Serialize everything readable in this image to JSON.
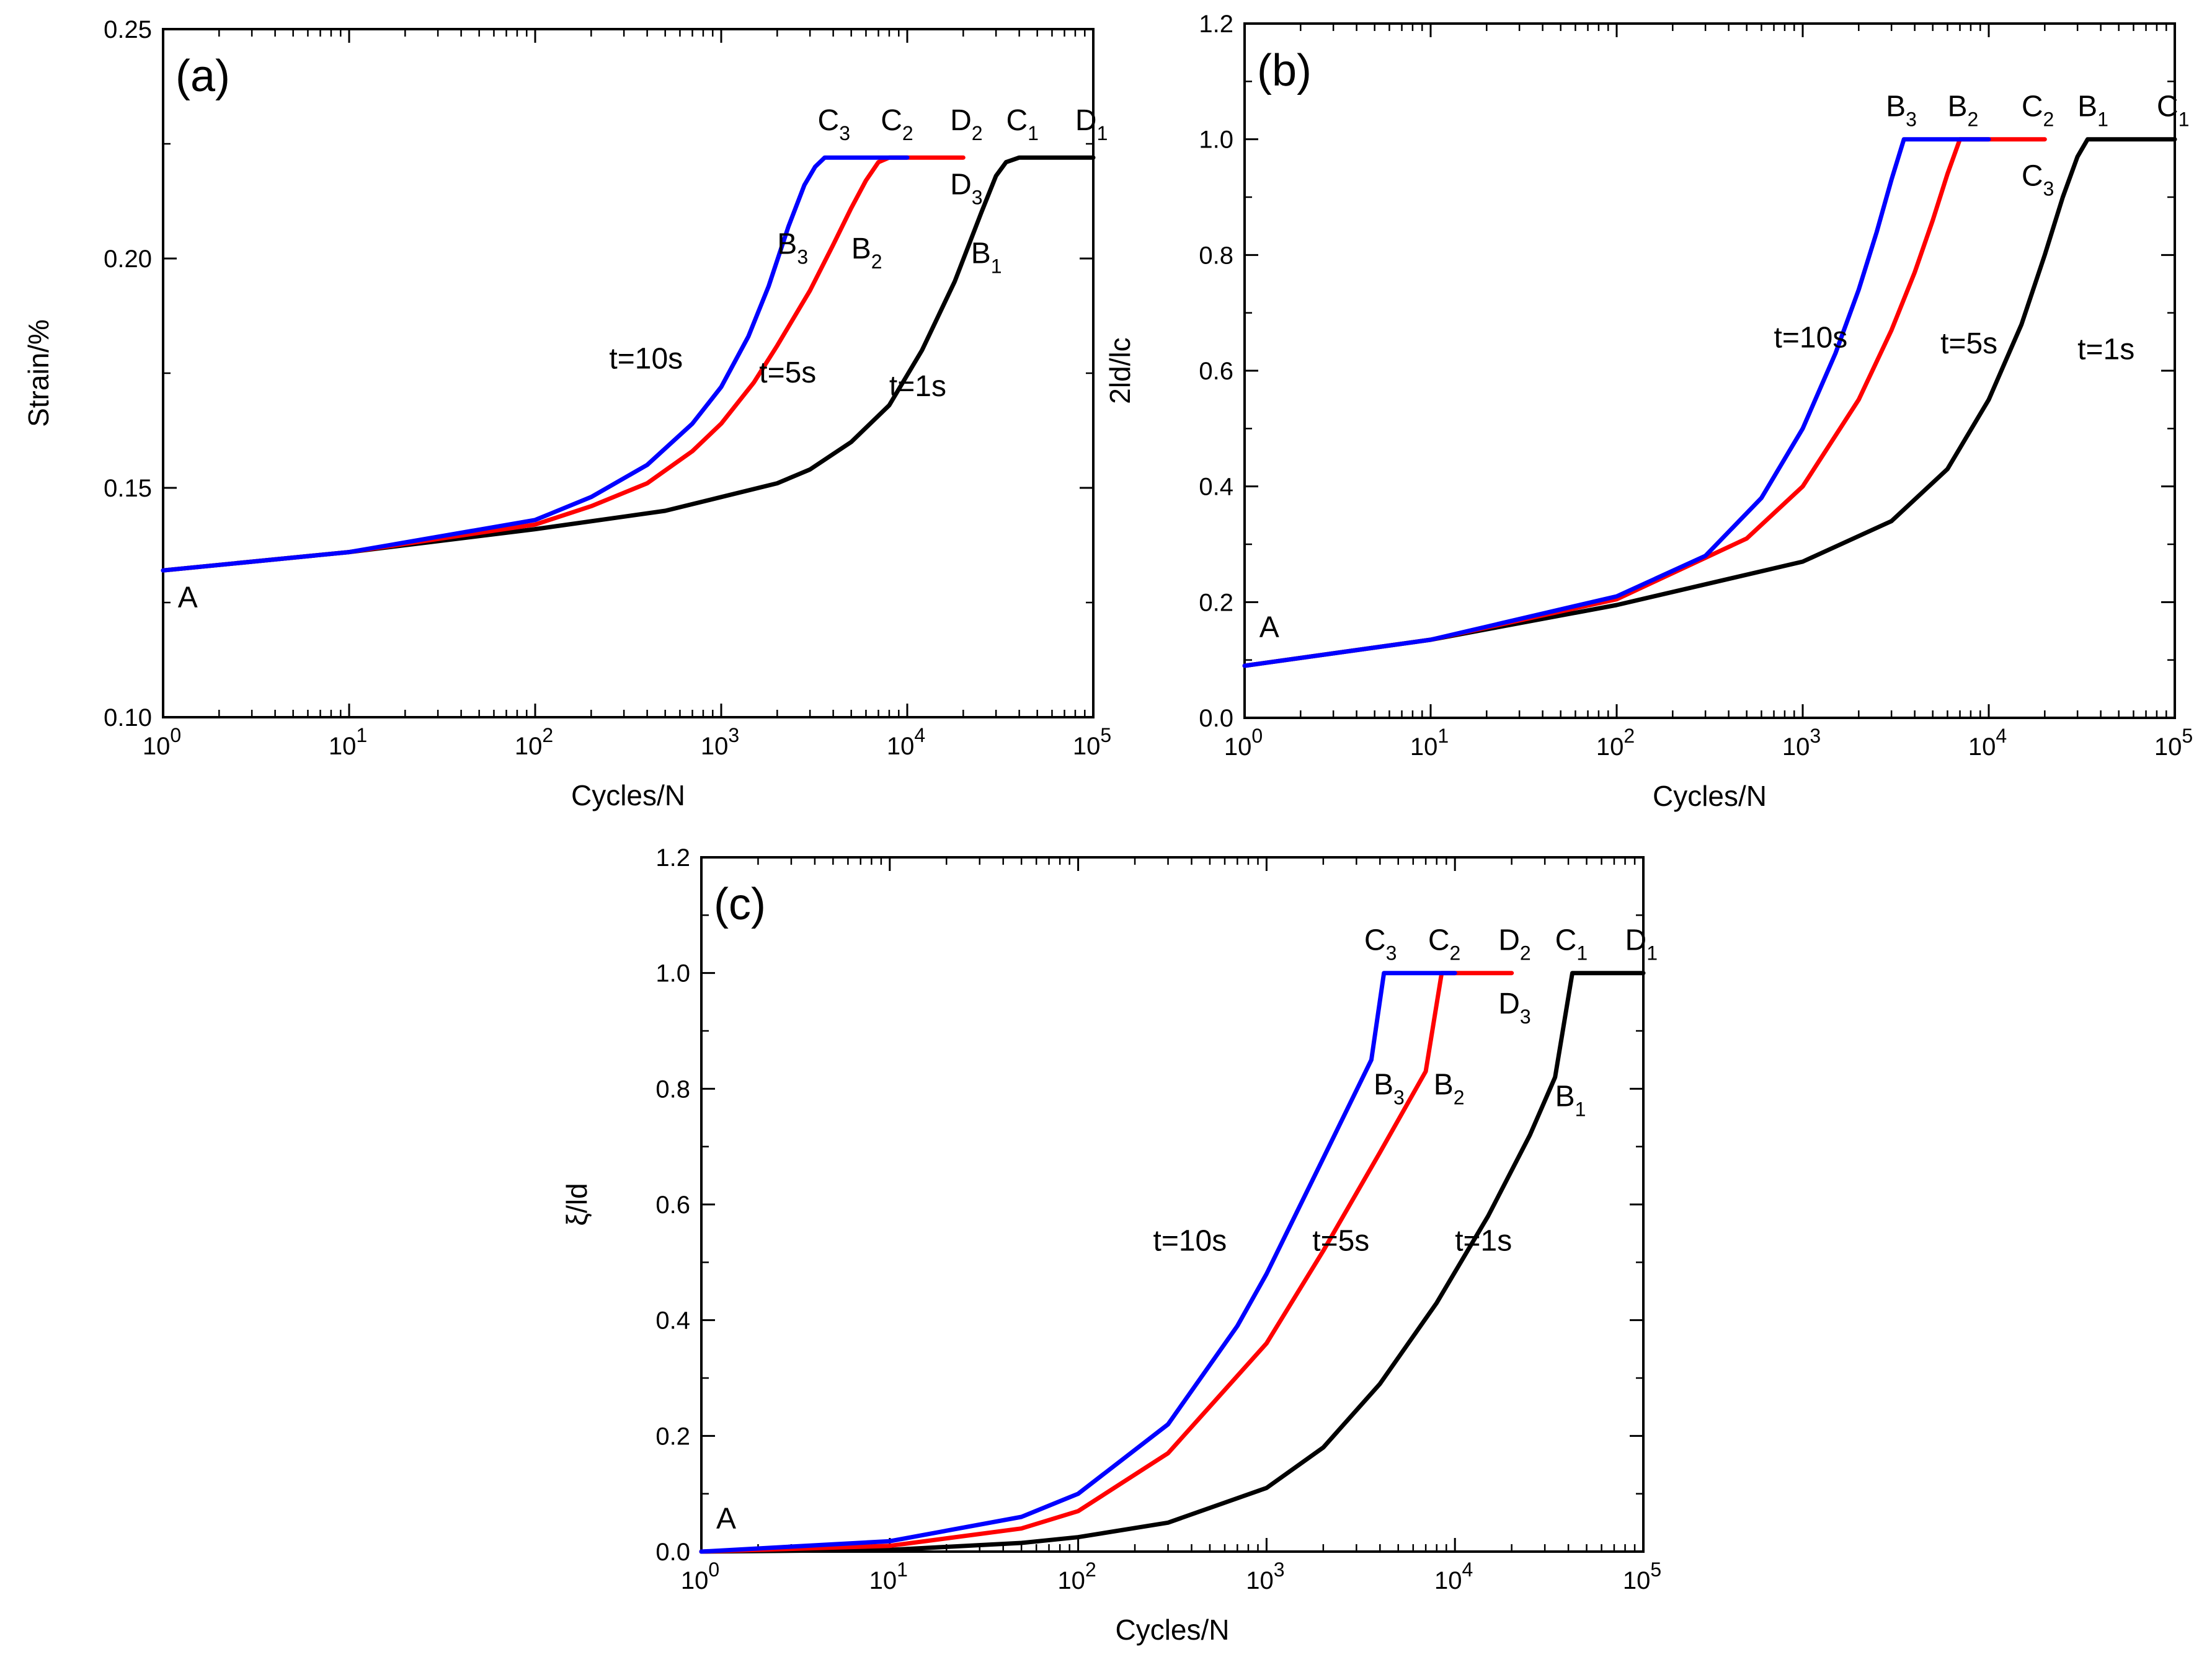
{
  "colors": {
    "t10": "#0000ff",
    "t5": "#ff0000",
    "t1": "#000000"
  },
  "chart_data": [
    {
      "id": "a",
      "type": "line",
      "panel_label": "(a)",
      "xlabel": "Cycles/N",
      "ylabel": "Strain/%",
      "xscale": "log",
      "xlim": [
        1,
        100000
      ],
      "ylim": [
        0.1,
        0.25
      ],
      "xticks": [
        1,
        10,
        100,
        1000,
        10000,
        100000
      ],
      "xtick_labels": [
        {
          "base": "10",
          "exp": "0"
        },
        {
          "base": "10",
          "exp": "1"
        },
        {
          "base": "10",
          "exp": "2"
        },
        {
          "base": "10",
          "exp": "3"
        },
        {
          "base": "10",
          "exp": "4"
        },
        {
          "base": "10",
          "exp": "5"
        }
      ],
      "yticks": [
        0.1,
        0.15,
        0.2,
        0.25
      ],
      "ytick_labels": [
        "0.10",
        "0.15",
        "0.20",
        "0.25"
      ],
      "series": [
        {
          "name": "t=1s",
          "color": "#000000",
          "x": [
            1,
            10,
            100,
            500,
            1000,
            2000,
            3000,
            5000,
            8000,
            12000,
            18000,
            25000,
            30000,
            34000,
            40000,
            100000
          ],
          "y": [
            0.132,
            0.136,
            0.141,
            0.145,
            0.148,
            0.151,
            0.154,
            0.16,
            0.168,
            0.18,
            0.195,
            0.21,
            0.218,
            0.221,
            0.222,
            0.222
          ]
        },
        {
          "name": "t=5s",
          "color": "#ff0000",
          "x": [
            1,
            10,
            100,
            200,
            400,
            700,
            1000,
            1500,
            2000,
            3000,
            4000,
            5000,
            6000,
            7000,
            8000,
            20000
          ],
          "y": [
            0.132,
            0.136,
            0.142,
            0.146,
            0.151,
            0.158,
            0.164,
            0.173,
            0.181,
            0.193,
            0.203,
            0.211,
            0.217,
            0.221,
            0.222,
            0.222
          ]
        },
        {
          "name": "t=10s",
          "color": "#0000ff",
          "x": [
            1,
            10,
            100,
            200,
            400,
            700,
            1000,
            1400,
            1800,
            2300,
            2800,
            3200,
            3600,
            4000,
            10000
          ],
          "y": [
            0.132,
            0.136,
            0.143,
            0.148,
            0.155,
            0.164,
            0.172,
            0.183,
            0.194,
            0.207,
            0.216,
            0.22,
            0.222,
            0.222,
            0.222
          ]
        }
      ],
      "annotations": [
        {
          "text": "A",
          "sub": "",
          "x": 1.2,
          "y": 0.124
        },
        {
          "text": "C",
          "sub": "3",
          "x": 3300,
          "y": 0.228
        },
        {
          "text": "C",
          "sub": "2",
          "x": 7200,
          "y": 0.228
        },
        {
          "text": "D",
          "sub": "2",
          "x": 17000,
          "y": 0.228
        },
        {
          "text": "D",
          "sub": "3",
          "x": 17000,
          "y": 0.214
        },
        {
          "text": "C",
          "sub": "1",
          "x": 34000,
          "y": 0.228
        },
        {
          "text": "D",
          "sub": "1",
          "x": 80000,
          "y": 0.228
        },
        {
          "text": "B",
          "sub": "3",
          "x": 2000,
          "y": 0.201
        },
        {
          "text": "B",
          "sub": "2",
          "x": 5000,
          "y": 0.2
        },
        {
          "text": "B",
          "sub": "1",
          "x": 22000,
          "y": 0.199
        },
        {
          "text": "t=10s",
          "sub": "",
          "x": 250,
          "y": 0.176
        },
        {
          "text": "t=5s",
          "sub": "",
          "x": 1600,
          "y": 0.173
        },
        {
          "text": "t=1s",
          "sub": "",
          "x": 8000,
          "y": 0.17
        }
      ]
    },
    {
      "id": "b",
      "type": "line",
      "panel_label": "(b)",
      "xlabel": "Cycles/N",
      "ylabel": "2ld/lc",
      "xscale": "log",
      "xlim": [
        1,
        100000
      ],
      "ylim": [
        0.0,
        1.2
      ],
      "xticks": [
        1,
        10,
        100,
        1000,
        10000,
        100000
      ],
      "xtick_labels": [
        {
          "base": "10",
          "exp": "0"
        },
        {
          "base": "10",
          "exp": "1"
        },
        {
          "base": "10",
          "exp": "2"
        },
        {
          "base": "10",
          "exp": "3"
        },
        {
          "base": "10",
          "exp": "4"
        },
        {
          "base": "10",
          "exp": "5"
        }
      ],
      "yticks": [
        0.0,
        0.2,
        0.4,
        0.6,
        0.8,
        1.0,
        1.2
      ],
      "ytick_labels": [
        "0.0",
        "0.2",
        "0.4",
        "0.6",
        "0.8",
        "1.0",
        "1.2"
      ],
      "series": [
        {
          "name": "t=1s",
          "color": "#000000",
          "x": [
            1,
            10,
            100,
            1000,
            3000,
            6000,
            10000,
            15000,
            20000,
            25000,
            30000,
            34000,
            100000
          ],
          "y": [
            0.09,
            0.135,
            0.195,
            0.27,
            0.34,
            0.43,
            0.55,
            0.68,
            0.8,
            0.9,
            0.97,
            1.0,
            1.0
          ]
        },
        {
          "name": "t=5s",
          "color": "#ff0000",
          "x": [
            1,
            10,
            100,
            500,
            1000,
            2000,
            3000,
            4000,
            5000,
            6000,
            7000,
            20000
          ],
          "y": [
            0.09,
            0.135,
            0.205,
            0.31,
            0.4,
            0.55,
            0.67,
            0.77,
            0.86,
            0.94,
            1.0,
            1.0
          ]
        },
        {
          "name": "t=10s",
          "color": "#0000ff",
          "x": [
            1,
            10,
            100,
            300,
            600,
            1000,
            1500,
            2000,
            2500,
            3000,
            3500,
            10000
          ],
          "y": [
            0.09,
            0.135,
            0.21,
            0.28,
            0.38,
            0.5,
            0.63,
            0.74,
            0.84,
            0.93,
            1.0,
            1.0
          ]
        }
      ],
      "annotations": [
        {
          "text": "A",
          "sub": "",
          "x": 1.2,
          "y": 0.14
        },
        {
          "text": "B",
          "sub": "3",
          "x": 2800,
          "y": 1.04
        },
        {
          "text": "B",
          "sub": "2",
          "x": 6000,
          "y": 1.04
        },
        {
          "text": "C",
          "sub": "2",
          "x": 15000,
          "y": 1.04
        },
        {
          "text": "C",
          "sub": "3",
          "x": 15000,
          "y": 0.92
        },
        {
          "text": "B",
          "sub": "1",
          "x": 30000,
          "y": 1.04
        },
        {
          "text": "C",
          "sub": "1",
          "x": 80000,
          "y": 1.04
        },
        {
          "text": "t=10s",
          "sub": "",
          "x": 700,
          "y": 0.64
        },
        {
          "text": "t=5s",
          "sub": "",
          "x": 5500,
          "y": 0.63
        },
        {
          "text": "t=1s",
          "sub": "",
          "x": 30000,
          "y": 0.62
        }
      ]
    },
    {
      "id": "c",
      "type": "line",
      "panel_label": "(c)",
      "xlabel": "Cycles/N",
      "ylabel": "ξ/ld",
      "xscale": "log",
      "xlim": [
        1,
        100000
      ],
      "ylim": [
        0.0,
        1.2
      ],
      "xticks": [
        1,
        10,
        100,
        1000,
        10000,
        100000
      ],
      "xtick_labels": [
        {
          "base": "10",
          "exp": "0"
        },
        {
          "base": "10",
          "exp": "1"
        },
        {
          "base": "10",
          "exp": "2"
        },
        {
          "base": "10",
          "exp": "3"
        },
        {
          "base": "10",
          "exp": "4"
        },
        {
          "base": "10",
          "exp": "5"
        }
      ],
      "yticks": [
        0.0,
        0.2,
        0.4,
        0.6,
        0.8,
        1.0,
        1.2
      ],
      "ytick_labels": [
        "0.0",
        "0.2",
        "0.4",
        "0.6",
        "0.8",
        "1.0",
        "1.2"
      ],
      "series": [
        {
          "name": "t=1s",
          "color": "#000000",
          "x": [
            1,
            10,
            50,
            100,
            300,
            1000,
            2000,
            4000,
            8000,
            15000,
            25000,
            34000,
            42000,
            100000
          ],
          "y": [
            0.0,
            0.003,
            0.015,
            0.025,
            0.05,
            0.11,
            0.18,
            0.29,
            0.43,
            0.58,
            0.72,
            0.82,
            1.0,
            1.0
          ]
        },
        {
          "name": "t=5s",
          "color": "#ff0000",
          "x": [
            1,
            10,
            50,
            100,
            300,
            1000,
            2000,
            4000,
            7000,
            8500,
            20000
          ],
          "y": [
            0.0,
            0.01,
            0.04,
            0.07,
            0.17,
            0.36,
            0.52,
            0.69,
            0.83,
            1.0,
            1.0
          ]
        },
        {
          "name": "t=10s",
          "color": "#0000ff",
          "x": [
            1,
            10,
            50,
            100,
            300,
            700,
            1000,
            2000,
            3600,
            4200,
            10000
          ],
          "y": [
            0.0,
            0.018,
            0.06,
            0.1,
            0.22,
            0.39,
            0.48,
            0.68,
            0.85,
            1.0,
            1.0
          ]
        }
      ],
      "annotations": [
        {
          "text": "A",
          "sub": "",
          "x": 1.2,
          "y": 0.04
        },
        {
          "text": "C",
          "sub": "3",
          "x": 3300,
          "y": 1.04
        },
        {
          "text": "C",
          "sub": "2",
          "x": 7200,
          "y": 1.04
        },
        {
          "text": "D",
          "sub": "2",
          "x": 17000,
          "y": 1.04
        },
        {
          "text": "D",
          "sub": "3",
          "x": 17000,
          "y": 0.93
        },
        {
          "text": "C",
          "sub": "1",
          "x": 34000,
          "y": 1.04
        },
        {
          "text": "D",
          "sub": "1",
          "x": 80000,
          "y": 1.04
        },
        {
          "text": "B",
          "sub": "3",
          "x": 3700,
          "y": 0.79
        },
        {
          "text": "B",
          "sub": "2",
          "x": 7700,
          "y": 0.79
        },
        {
          "text": "B",
          "sub": "1",
          "x": 34000,
          "y": 0.77
        },
        {
          "text": "t=10s",
          "sub": "",
          "x": 250,
          "y": 0.52
        },
        {
          "text": "t=5s",
          "sub": "",
          "x": 1750,
          "y": 0.52
        },
        {
          "text": "t=1s",
          "sub": "",
          "x": 10000,
          "y": 0.52
        }
      ]
    }
  ]
}
